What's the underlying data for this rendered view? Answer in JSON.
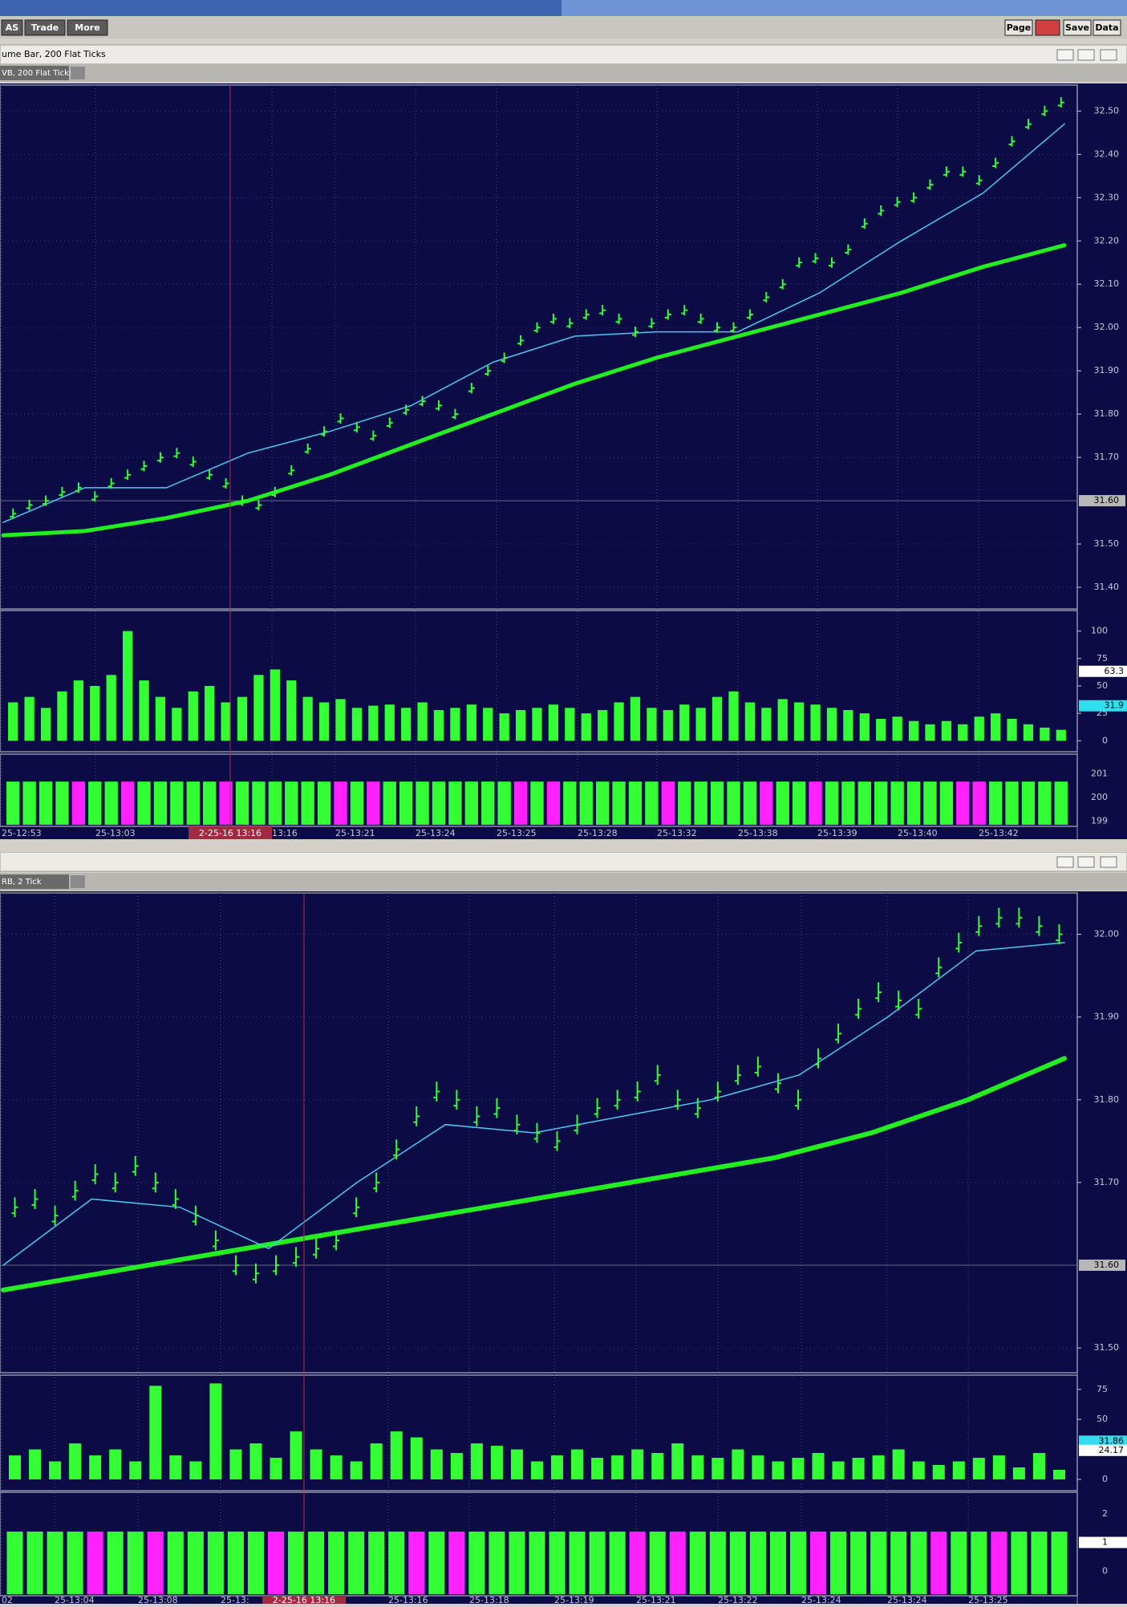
{
  "toolbar": {
    "left_buttons": [
      "AS",
      "Trade",
      "More"
    ],
    "right_buttons": [
      "Page",
      "Save",
      "Data"
    ]
  },
  "windows": [
    {
      "title": "ume Bar, 200 Flat Ticks",
      "tab": "VB, 200 Flat Ticks",
      "price": {
        "ylim": [
          31.35,
          32.56
        ],
        "yticks": [
          {
            "value": 32.5,
            "label": "32.50"
          },
          {
            "value": 32.4,
            "label": "32.40"
          },
          {
            "value": 32.3,
            "label": "32.30"
          },
          {
            "value": 32.2,
            "label": "32.20"
          },
          {
            "value": 32.1,
            "label": "32.10"
          },
          {
            "value": 32.0,
            "label": "32.00"
          },
          {
            "value": 31.9,
            "label": "31.90"
          },
          {
            "value": 31.8,
            "label": "31.80"
          },
          {
            "value": 31.7,
            "label": "31.70"
          },
          {
            "value": 31.5,
            "label": "31.50"
          },
          {
            "value": 31.4,
            "label": "31.40"
          }
        ],
        "last_label": {
          "value": 31.6,
          "label": "31.60"
        },
        "bars": {
          "color": "#33ff33",
          "values": [
            31.57,
            31.59,
            31.6,
            31.62,
            31.63,
            31.61,
            31.64,
            31.66,
            31.68,
            31.7,
            31.71,
            31.69,
            31.66,
            31.64,
            31.6,
            31.59,
            31.62,
            31.67,
            31.72,
            31.76,
            31.79,
            31.77,
            31.75,
            31.78,
            31.81,
            31.83,
            31.82,
            31.8,
            31.86,
            31.9,
            31.93,
            31.97,
            32.0,
            32.02,
            32.01,
            32.03,
            32.04,
            32.02,
            31.99,
            32.01,
            32.03,
            32.04,
            32.02,
            32.0,
            32.0,
            32.03,
            32.07,
            32.1,
            32.15,
            32.16,
            32.15,
            32.18,
            32.24,
            32.27,
            32.29,
            32.3,
            32.33,
            32.36,
            32.36,
            32.34,
            32.38,
            32.43,
            32.47,
            32.5,
            32.52
          ]
        },
        "lines": [
          {
            "color": "#22ee22",
            "width": 5,
            "values": [
              31.52,
              31.53,
              31.56,
              31.6,
              31.66,
              31.73,
              31.8,
              31.87,
              31.93,
              31.98,
              32.03,
              32.08,
              32.14,
              32.19
            ]
          },
          {
            "color": "#4cc8f5",
            "width": 1.5,
            "values": [
              31.55,
              31.63,
              31.63,
              31.71,
              31.76,
              31.82,
              31.92,
              31.98,
              31.99,
              31.99,
              32.08,
              32.2,
              32.31,
              32.47
            ]
          }
        ]
      },
      "volume": {
        "ylim": [
          -10,
          118.7
        ],
        "yticks": [
          100,
          75,
          50,
          25,
          0
        ],
        "markers": [
          {
            "value": 63.3,
            "color": "#ffffff"
          },
          {
            "value": 31.9,
            "color": "#33ddee"
          }
        ],
        "color": "#33ff33",
        "values": [
          35,
          40,
          30,
          45,
          55,
          50,
          60,
          100,
          55,
          40,
          30,
          45,
          50,
          35,
          40,
          60,
          65,
          55,
          40,
          35,
          38,
          30,
          32,
          33,
          30,
          35,
          28,
          30,
          33,
          30,
          25,
          28,
          30,
          33,
          30,
          25,
          28,
          35,
          40,
          30,
          28,
          33,
          30,
          40,
          45,
          35,
          30,
          38,
          35,
          33,
          30,
          28,
          25,
          20,
          22,
          18,
          15,
          18,
          15,
          22,
          25,
          20,
          15,
          12,
          10
        ]
      },
      "indicator": {
        "ylim": [
          198.78,
          201.83
        ],
        "yticks": [
          201,
          200,
          199
        ]
      },
      "time_labels": [
        "25-12:53",
        "25-13:03",
        "13:16",
        "25-13:21",
        "25-13:24",
        "25-13:25",
        "25-13:28",
        "25-13:32",
        "25-13:38",
        "25-13:39",
        "25-13:40",
        "25-13:42"
      ],
      "cursor_time": "2-25-16  13:16"
    },
    {
      "title": "",
      "tab": "RB, 2 Tick",
      "price": {
        "ylim": [
          31.47,
          32.05
        ],
        "yticks": [
          {
            "value": 32.0,
            "label": "32.00"
          },
          {
            "value": 31.9,
            "label": "31.90"
          },
          {
            "value": 31.8,
            "label": "31.80"
          },
          {
            "value": 31.7,
            "label": "31.70"
          },
          {
            "value": 31.5,
            "label": "31.50"
          }
        ],
        "last_label": {
          "value": 31.6,
          "label": "31.60"
        },
        "bars": {
          "color": "#33ff33",
          "values": [
            31.67,
            31.68,
            31.66,
            31.69,
            31.71,
            31.7,
            31.72,
            31.7,
            31.68,
            31.66,
            31.63,
            31.6,
            31.59,
            31.6,
            31.61,
            31.62,
            31.63,
            31.67,
            31.7,
            31.74,
            31.78,
            31.81,
            31.8,
            31.78,
            31.79,
            31.77,
            31.76,
            31.75,
            31.77,
            31.79,
            31.8,
            31.81,
            31.83,
            31.8,
            31.79,
            31.81,
            31.83,
            31.84,
            31.82,
            31.8,
            31.85,
            31.88,
            31.91,
            31.93,
            31.92,
            31.91,
            31.96,
            31.99,
            32.01,
            32.02,
            32.02,
            32.01,
            32.0
          ]
        },
        "lines": [
          {
            "color": "#22ee22",
            "width": 6,
            "values": [
              31.57,
              31.59,
              31.61,
              31.63,
              31.65,
              31.67,
              31.69,
              31.71,
              31.73,
              31.76,
              31.8,
              31.85
            ]
          },
          {
            "color": "#4cc8f5",
            "width": 1.5,
            "values": [
              31.6,
              31.68,
              31.67,
              31.62,
              31.7,
              31.77,
              31.76,
              31.78,
              31.8,
              31.83,
              31.9,
              31.98,
              31.99
            ]
          }
        ]
      },
      "volume": {
        "ylim": [
          -9.4,
          86.9
        ],
        "yticks": [
          75,
          50,
          0
        ],
        "markers": [
          {
            "value": 31.86,
            "color": "#33ddee"
          },
          {
            "value": 24.17,
            "color": "#ffffff"
          }
        ],
        "color": "#33ff33",
        "values": [
          20,
          25,
          15,
          30,
          20,
          25,
          15,
          78,
          20,
          15,
          80,
          25,
          30,
          18,
          40,
          25,
          20,
          15,
          30,
          40,
          35,
          25,
          22,
          30,
          28,
          25,
          15,
          20,
          25,
          18,
          20,
          25,
          22,
          30,
          20,
          18,
          25,
          20,
          15,
          18,
          22,
          15,
          18,
          20,
          25,
          15,
          12,
          15,
          18,
          20,
          10,
          22,
          8
        ]
      },
      "indicator": {
        "ylim": [
          -0.86,
          2.75
        ],
        "yticks": [
          2,
          0
        ],
        "markers": [
          {
            "value": 1,
            "color": "#ffffff"
          }
        ]
      },
      "time_labels": [
        "02",
        "25-13:04",
        "25-13:08",
        "25-13:",
        "25-13:16",
        "25-13:18",
        "25-13:19",
        "25-13:21",
        "25-13:22",
        "25-13:24",
        "25-13:24",
        "25-13:25"
      ],
      "cursor_time": "2-25-16  13:16"
    }
  ]
}
